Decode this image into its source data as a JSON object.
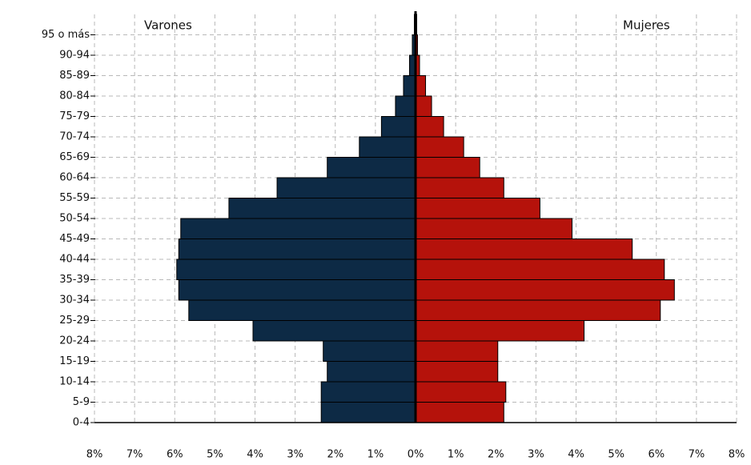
{
  "chart_data": {
    "type": "population-pyramid",
    "categories": [
      "0-4",
      "5-9",
      "10-14",
      "15-19",
      "20-24",
      "25-29",
      "30-34",
      "35-39",
      "40-44",
      "45-49",
      "50-54",
      "55-59",
      "60-64",
      "65-69",
      "70-74",
      "75-79",
      "80-84",
      "85-89",
      "90-94",
      "95 o más"
    ],
    "series": [
      {
        "name": "Varones",
        "color": "#0d2a45",
        "side": "left",
        "values": [
          2.35,
          2.35,
          2.2,
          2.3,
          4.05,
          5.65,
          5.9,
          5.95,
          5.9,
          5.85,
          4.65,
          3.45,
          2.2,
          1.4,
          0.85,
          0.5,
          0.3,
          0.15,
          0.08,
          0.03
        ]
      },
      {
        "name": "Mujeres",
        "color": "#b5120b",
        "side": "right",
        "values": [
          2.2,
          2.25,
          2.05,
          2.05,
          4.2,
          6.1,
          6.45,
          6.2,
          5.4,
          3.9,
          3.1,
          2.2,
          1.6,
          1.2,
          0.7,
          0.4,
          0.25,
          0.1,
          0.05,
          0.03
        ]
      }
    ],
    "xlim": [
      -8,
      8
    ],
    "xticks": [
      {
        "value": -8,
        "label": "8%"
      },
      {
        "value": -7,
        "label": "7%"
      },
      {
        "value": -6,
        "label": "6%"
      },
      {
        "value": -5,
        "label": "5%"
      },
      {
        "value": -4,
        "label": "4%"
      },
      {
        "value": -3,
        "label": "3%"
      },
      {
        "value": -2,
        "label": "2%"
      },
      {
        "value": -1,
        "label": "1%"
      },
      {
        "value": 0,
        "label": "0%"
      },
      {
        "value": 1,
        "label": "1%"
      },
      {
        "value": 2,
        "label": "2%"
      },
      {
        "value": 3,
        "label": "3%"
      },
      {
        "value": 4,
        "label": "4%"
      },
      {
        "value": 5,
        "label": "5%"
      },
      {
        "value": 6,
        "label": "6%"
      },
      {
        "value": 7,
        "label": "7%"
      },
      {
        "value": 8,
        "label": "8%"
      }
    ],
    "grid": true
  }
}
